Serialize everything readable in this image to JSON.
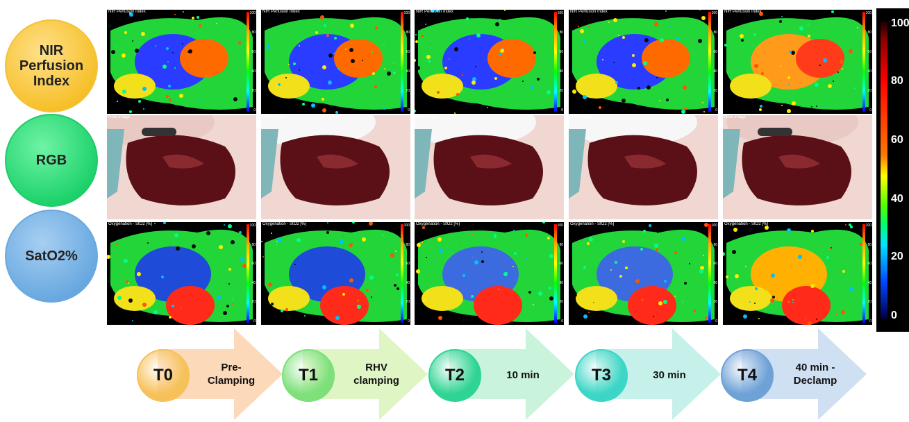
{
  "row_labels": {
    "nir": "NIR\nPerfusion\nIndex",
    "rgb": "RGB",
    "sat": "SatO2%"
  },
  "panel_titles": {
    "nir": "NIR Perfusion Index",
    "rgb": "RGB image",
    "sat": "Oxygenation - StO2 [%]"
  },
  "mini_scale": [
    "100",
    "80",
    "60",
    "40",
    "20",
    "0"
  ],
  "color_scale": {
    "ticks": [
      "100",
      "80",
      "60",
      "40",
      "20",
      "0"
    ]
  },
  "timeline": [
    {
      "code": "T0",
      "desc": "Pre-\nClamping",
      "arrow_color": "#fcd9b8",
      "circle_color": "#f7c15a"
    },
    {
      "code": "T1",
      "desc": "RHV\nclamping",
      "arrow_color": "#dff5c4",
      "circle_color": "#7ee07a"
    },
    {
      "code": "T2",
      "desc": "10 min",
      "arrow_color": "#c9f3da",
      "circle_color": "#2fd494"
    },
    {
      "code": "T3",
      "desc": "30 min",
      "arrow_color": "#c6f1ea",
      "circle_color": "#3dd6c6"
    },
    {
      "code": "T4",
      "desc": "40 min -\nDeclamp",
      "arrow_color": "#cfe0f2",
      "circle_color": "#6ea1d6"
    }
  ],
  "colors": {
    "nir_circle": "#f7c12c",
    "rgb_circle": "#1fd36c",
    "sat_circle": "#6aa9e0"
  }
}
